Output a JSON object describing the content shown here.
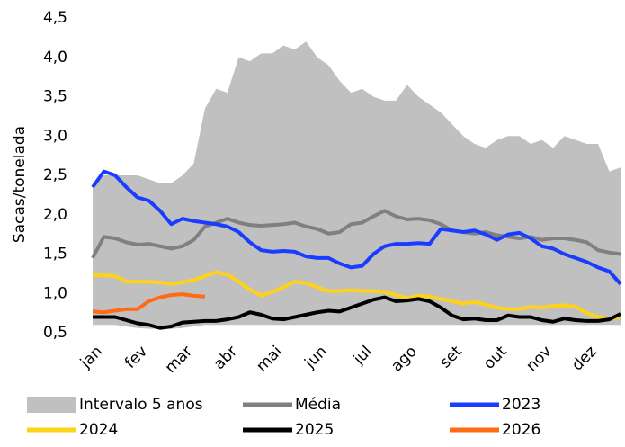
{
  "chart_data": {
    "type": "line",
    "ylabel": "Sacas/tonelada",
    "categories": [
      "jan",
      null,
      null,
      null,
      "fev",
      null,
      null,
      null,
      "mar",
      null,
      null,
      null,
      "abr",
      null,
      null,
      null,
      "mai",
      null,
      null,
      null,
      "jun",
      null,
      null,
      null,
      "jul",
      null,
      null,
      null,
      "ago",
      null,
      null,
      null,
      "set",
      null,
      null,
      null,
      "out",
      null,
      null,
      null,
      "nov",
      null,
      null,
      null,
      "dez",
      null,
      null,
      null
    ],
    "ylim": [
      0.5,
      4.5
    ],
    "yticks": [
      {
        "value": 0.5,
        "label": "0,5"
      },
      {
        "value": 1.0,
        "label": "1,0"
      },
      {
        "value": 1.5,
        "label": "1,5"
      },
      {
        "value": 2.0,
        "label": "2,0"
      },
      {
        "value": 2.5,
        "label": "2,5"
      },
      {
        "value": 3.0,
        "label": "3,0"
      },
      {
        "value": 3.5,
        "label": "3,5"
      },
      {
        "value": 4.0,
        "label": "4,0"
      },
      {
        "value": 4.5,
        "label": "4,5"
      }
    ],
    "band": {
      "name": "Intervalo 5 anos",
      "color": "#c0c0c0",
      "upper": [
        2.35,
        2.5,
        2.5,
        2.5,
        2.5,
        2.45,
        2.4,
        2.4,
        2.5,
        2.65,
        3.35,
        3.6,
        3.55,
        4.0,
        3.95,
        4.05,
        4.05,
        4.15,
        4.1,
        4.2,
        4.0,
        3.9,
        3.7,
        3.55,
        3.6,
        3.5,
        3.45,
        3.45,
        3.65,
        3.5,
        3.4,
        3.3,
        3.15,
        3.0,
        2.9,
        2.85,
        2.95,
        3.0,
        3.0,
        2.9,
        2.95,
        2.85,
        3.0,
        2.95,
        2.9,
        2.9,
        2.55,
        2.6
      ],
      "lower": [
        0.6,
        0.6,
        0.6,
        0.58,
        0.56,
        0.55,
        0.55,
        0.55,
        0.56,
        0.58,
        0.6,
        0.6,
        0.6,
        0.6,
        0.6,
        0.6,
        0.6,
        0.6,
        0.6,
        0.6,
        0.6,
        0.6,
        0.6,
        0.6,
        0.6,
        0.6,
        0.6,
        0.6,
        0.6,
        0.6,
        0.6,
        0.6,
        0.6,
        0.6,
        0.6,
        0.6,
        0.6,
        0.6,
        0.6,
        0.6,
        0.6,
        0.6,
        0.6,
        0.6,
        0.6,
        0.6,
        0.6,
        0.6
      ]
    },
    "series": [
      {
        "name": "Média",
        "color": "#808080",
        "values": [
          1.45,
          1.72,
          1.7,
          1.65,
          1.62,
          1.63,
          1.6,
          1.57,
          1.6,
          1.68,
          1.85,
          1.9,
          1.95,
          1.9,
          1.87,
          1.86,
          1.87,
          1.88,
          1.9,
          1.85,
          1.82,
          1.76,
          1.78,
          1.88,
          1.9,
          1.98,
          2.05,
          1.98,
          1.94,
          1.95,
          1.93,
          1.88,
          1.8,
          1.78,
          1.76,
          1.78,
          1.74,
          1.72,
          1.7,
          1.72,
          1.68,
          1.7,
          1.7,
          1.68,
          1.65,
          1.55,
          1.52,
          1.5
        ]
      },
      {
        "name": "2023",
        "color": "#1a3cff",
        "values": [
          2.35,
          2.55,
          2.5,
          2.35,
          2.22,
          2.18,
          2.05,
          1.88,
          1.95,
          1.92,
          1.9,
          1.88,
          1.85,
          1.78,
          1.65,
          1.55,
          1.53,
          1.54,
          1.53,
          1.47,
          1.45,
          1.45,
          1.38,
          1.33,
          1.35,
          1.5,
          1.6,
          1.63,
          1.63,
          1.64,
          1.63,
          1.82,
          1.8,
          1.78,
          1.8,
          1.75,
          1.68,
          1.75,
          1.77,
          1.7,
          1.6,
          1.57,
          1.5,
          1.45,
          1.4,
          1.33,
          1.28,
          1.12
        ]
      },
      {
        "name": "2024",
        "color": "#ffd21a",
        "values": [
          1.23,
          1.23,
          1.22,
          1.15,
          1.15,
          1.15,
          1.14,
          1.12,
          1.14,
          1.17,
          1.22,
          1.27,
          1.24,
          1.15,
          1.05,
          0.97,
          1.02,
          1.08,
          1.15,
          1.13,
          1.08,
          1.03,
          1.03,
          1.04,
          1.03,
          1.03,
          1.02,
          0.98,
          0.94,
          0.97,
          0.96,
          0.93,
          0.9,
          0.87,
          0.89,
          0.86,
          0.82,
          0.8,
          0.8,
          0.83,
          0.82,
          0.84,
          0.85,
          0.83,
          0.75,
          0.7,
          0.68,
          0.7
        ]
      },
      {
        "name": "2025",
        "color": "#000000",
        "values": [
          0.7,
          0.7,
          0.7,
          0.66,
          0.62,
          0.6,
          0.56,
          0.58,
          0.63,
          0.64,
          0.65,
          0.65,
          0.67,
          0.7,
          0.76,
          0.73,
          0.68,
          0.67,
          0.7,
          0.73,
          0.76,
          0.78,
          0.77,
          0.82,
          0.87,
          0.92,
          0.95,
          0.9,
          0.91,
          0.93,
          0.9,
          0.82,
          0.72,
          0.67,
          0.68,
          0.66,
          0.66,
          0.72,
          0.7,
          0.7,
          0.66,
          0.64,
          0.68,
          0.66,
          0.65,
          0.65,
          0.67,
          0.74
        ]
      },
      {
        "name": "2026",
        "color": "#ff6a13",
        "values": [
          0.77,
          0.76,
          0.78,
          0.8,
          0.8,
          0.9,
          0.95,
          0.98,
          0.99,
          0.97,
          0.96,
          null,
          null,
          null,
          null,
          null,
          null,
          null,
          null,
          null,
          null,
          null,
          null,
          null,
          null,
          null,
          null,
          null,
          null,
          null,
          null,
          null,
          null,
          null,
          null,
          null,
          null,
          null,
          null,
          null,
          null,
          null,
          null,
          null,
          null,
          null,
          null,
          null
        ]
      }
    ]
  }
}
